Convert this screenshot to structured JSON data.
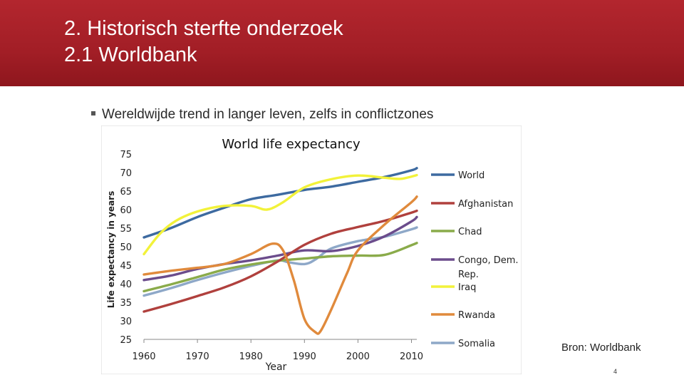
{
  "slide": {
    "title_line1": "2. Historisch sterfte onderzoek",
    "title_line2": "2.1 Worldbank",
    "bullet": "Wereldwijde trend in langer leven, zelfs in conflictzones",
    "source": "Bron: Worldbank",
    "page_number": "4"
  },
  "chart_data": {
    "type": "line",
    "title": "World life expectancy",
    "xlabel": "Year",
    "ylabel": "Life expectancy in years",
    "xlim": [
      1960,
      2011
    ],
    "ylim": [
      25,
      75
    ],
    "xticks": [
      1960,
      1970,
      1980,
      1990,
      2000,
      2010
    ],
    "yticks": [
      25,
      30,
      35,
      40,
      45,
      50,
      55,
      60,
      65,
      70,
      75
    ],
    "grid": false,
    "legend_position": "right",
    "series": [
      {
        "name": "World",
        "color": "#3d6aa0",
        "x": [
          1960,
          1965,
          1970,
          1975,
          1980,
          1985,
          1990,
          1995,
          2000,
          2005,
          2010,
          2011
        ],
        "y": [
          52.5,
          55,
          58,
          60.5,
          62.8,
          64,
          65.3,
          66.2,
          67.5,
          68.8,
          70.6,
          71.2
        ]
      },
      {
        "name": "Afghanistan",
        "color": "#b0403d",
        "x": [
          1960,
          1965,
          1970,
          1975,
          1980,
          1985,
          1990,
          1995,
          2000,
          2005,
          2010,
          2011
        ],
        "y": [
          32.5,
          34.5,
          36.7,
          39,
          42,
          46,
          50.5,
          53.5,
          55.3,
          57,
          59.2,
          59.7
        ]
      },
      {
        "name": "Chad",
        "color": "#8aab4a",
        "x": [
          1960,
          1965,
          1970,
          1975,
          1980,
          1985,
          1990,
          1995,
          2000,
          2005,
          2010,
          2011
        ],
        "y": [
          38,
          39.8,
          41.8,
          43.8,
          45.2,
          46.2,
          46.8,
          47.4,
          47.6,
          47.8,
          50.4,
          51
        ]
      },
      {
        "name": "Congo, Dem. Rep.",
        "color": "#6b4c8c",
        "x": [
          1960,
          1965,
          1970,
          1975,
          1980,
          1985,
          1990,
          1995,
          2000,
          2005,
          2010,
          2011
        ],
        "y": [
          41,
          42.2,
          44,
          45.3,
          46.3,
          47.6,
          49,
          48.8,
          50.2,
          52.8,
          56.8,
          58
        ]
      },
      {
        "name": "Iraq",
        "color": "#f2f23a",
        "x": [
          1960,
          1963,
          1966,
          1970,
          1975,
          1980,
          1983,
          1986,
          1990,
          1995,
          2000,
          2005,
          2008,
          2011
        ],
        "y": [
          48,
          53.5,
          57,
          59.5,
          61,
          61,
          60,
          62,
          66,
          68.2,
          69.2,
          68.6,
          68.3,
          69.3
        ]
      },
      {
        "name": "Rwanda",
        "color": "#e08a3c",
        "x": [
          1960,
          1965,
          1970,
          1975,
          1980,
          1984,
          1986,
          1988,
          1990,
          1992,
          1993,
          1995,
          1998,
          2000,
          2005,
          2010,
          2011
        ],
        "y": [
          42.5,
          43.5,
          44.3,
          45.3,
          48,
          50.8,
          49,
          41,
          30.5,
          27,
          27.2,
          33,
          43,
          49,
          56,
          62,
          63.5
        ]
      },
      {
        "name": "Somalia",
        "color": "#8ea8c8",
        "x": [
          1960,
          1965,
          1970,
          1975,
          1980,
          1985,
          1987,
          1990,
          1992,
          1995,
          2000,
          2005,
          2010,
          2011
        ],
        "y": [
          36.8,
          38.8,
          41,
          43,
          44.8,
          46.3,
          45.8,
          45.3,
          46.5,
          49.5,
          51.5,
          52.7,
          54.7,
          55.2
        ]
      }
    ]
  }
}
